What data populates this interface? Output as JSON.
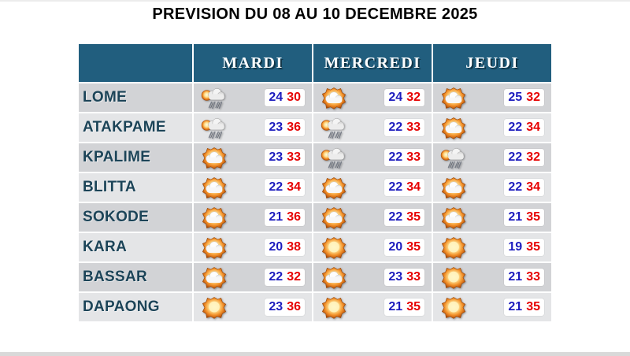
{
  "chart_data": {
    "type": "table",
    "title": "PREVISION DU 08 AU 10 DECEMBRE 2025",
    "day_headers": [
      "MARDI",
      "MERCREDI",
      "JEUDI"
    ],
    "legend_note": "min temperature in blue, max temperature in red",
    "rows": [
      {
        "city": "LOME",
        "cells": [
          {
            "icon": "rain-sun",
            "min": "24",
            "max": "30"
          },
          {
            "icon": "sun-cloud",
            "min": "24",
            "max": "32"
          },
          {
            "icon": "sun-cloud",
            "min": "25",
            "max": "32"
          }
        ]
      },
      {
        "city": "ATAKPAME",
        "cells": [
          {
            "icon": "rain-sun",
            "min": "23",
            "max": "36"
          },
          {
            "icon": "rain-sun",
            "min": "22",
            "max": "33"
          },
          {
            "icon": "sun-cloud",
            "min": "22",
            "max": "34"
          }
        ]
      },
      {
        "city": "KPALIME",
        "cells": [
          {
            "icon": "sun-cloud",
            "min": "23",
            "max": "33"
          },
          {
            "icon": "rain-sun",
            "min": "22",
            "max": "33"
          },
          {
            "icon": "rain-sun",
            "min": "22",
            "max": "32"
          }
        ]
      },
      {
        "city": "BLITTA",
        "cells": [
          {
            "icon": "sun-cloud",
            "min": "22",
            "max": "34"
          },
          {
            "icon": "sun-cloud",
            "min": "22",
            "max": "34"
          },
          {
            "icon": "sun-cloud",
            "min": "22",
            "max": "34"
          }
        ]
      },
      {
        "city": "SOKODE",
        "cells": [
          {
            "icon": "sun-cloud",
            "min": "21",
            "max": "36"
          },
          {
            "icon": "sun-cloud",
            "min": "22",
            "max": "35"
          },
          {
            "icon": "sun-cloud",
            "min": "21",
            "max": "35"
          }
        ]
      },
      {
        "city": "KARA",
        "cells": [
          {
            "icon": "sun-cloud",
            "min": "20",
            "max": "38"
          },
          {
            "icon": "sun",
            "min": "20",
            "max": "35"
          },
          {
            "icon": "sun",
            "min": "19",
            "max": "35"
          }
        ]
      },
      {
        "city": "BASSAR",
        "cells": [
          {
            "icon": "sun-cloud",
            "min": "22",
            "max": "32"
          },
          {
            "icon": "sun-cloud",
            "min": "23",
            "max": "33"
          },
          {
            "icon": "sun",
            "min": "21",
            "max": "33"
          }
        ]
      },
      {
        "city": "DAPAONG",
        "cells": [
          {
            "icon": "sun",
            "min": "23",
            "max": "36"
          },
          {
            "icon": "sun",
            "min": "21",
            "max": "35"
          },
          {
            "icon": "sun",
            "min": "21",
            "max": "35"
          }
        ]
      }
    ]
  },
  "icons": {
    "sun": "sun-icon",
    "sun-cloud": "sun-behind-cloud-icon",
    "rain-sun": "sun-rain-cloud-icon"
  },
  "colors": {
    "header_bg": "#215e7e",
    "header_text": "#ffffff",
    "city_text": "#1c4458",
    "temp_min": "#1c1cbe",
    "temp_max": "#e60000",
    "row_shade_dark": "#d2d3d6",
    "row_shade_light": "#e4e5e7",
    "page_bg": "#ffffff",
    "bottom_bar": "#d9d9d9",
    "title_text": "#000000"
  }
}
